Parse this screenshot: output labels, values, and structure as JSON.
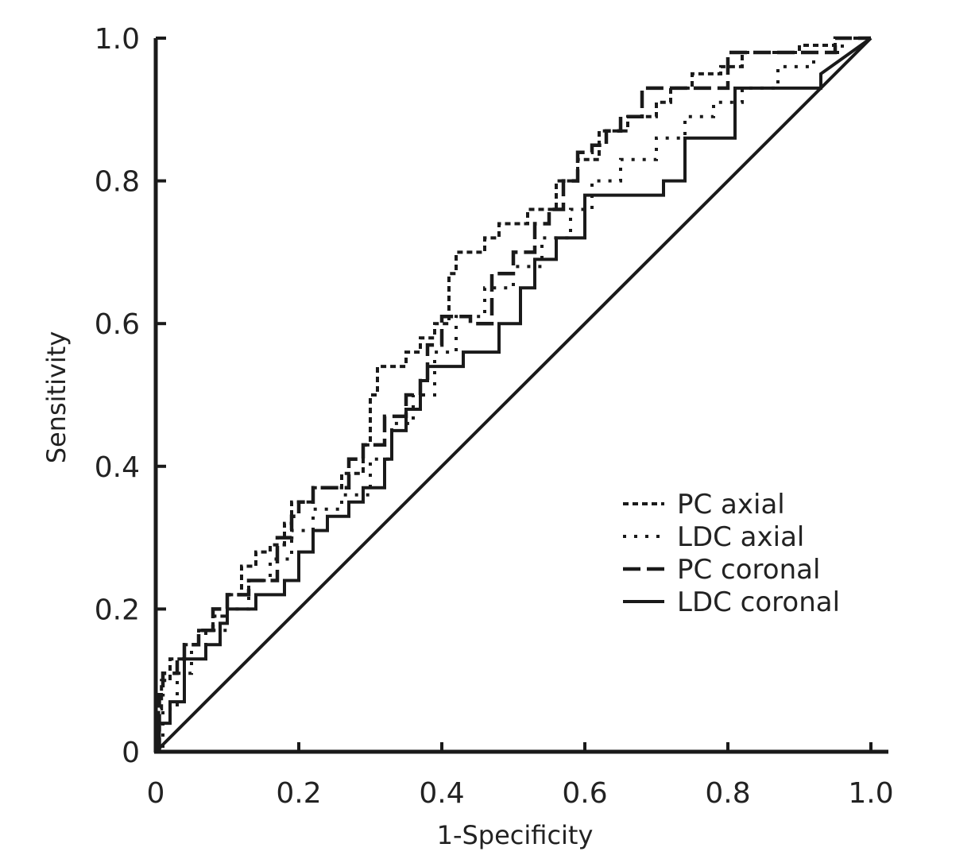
{
  "chart_data": {
    "type": "line",
    "xlabel": "1-Specificity",
    "ylabel": "Sensitivity",
    "xlim": [
      0,
      1
    ],
    "ylim": [
      0,
      1
    ],
    "x_ticks": [
      "0",
      "0.2",
      "0.4",
      "0.6",
      "0.8",
      "1.0"
    ],
    "y_ticks": [
      "0",
      "0.2",
      "0.4",
      "0.6",
      "0.8",
      "1.0"
    ],
    "legend_position": "bottom-right",
    "reference_line": {
      "x": [
        0,
        1
      ],
      "y": [
        0,
        1
      ]
    },
    "series": [
      {
        "name": "PC axial",
        "style": "short-dash",
        "x": [
          0,
          0.004,
          0.004,
          0.008,
          0.008,
          0.02,
          0.02,
          0.04,
          0.04,
          0.06,
          0.06,
          0.08,
          0.08,
          0.1,
          0.1,
          0.12,
          0.12,
          0.14,
          0.14,
          0.16,
          0.16,
          0.18,
          0.18,
          0.19,
          0.19,
          0.22,
          0.22,
          0.26,
          0.26,
          0.29,
          0.29,
          0.3,
          0.3,
          0.31,
          0.31,
          0.35,
          0.35,
          0.37,
          0.37,
          0.39,
          0.39,
          0.41,
          0.41,
          0.42,
          0.42,
          0.46,
          0.46,
          0.48,
          0.48,
          0.52,
          0.52,
          0.56,
          0.56,
          0.59,
          0.59,
          0.62,
          0.62,
          0.66,
          0.66,
          0.7,
          0.7,
          0.72,
          0.72,
          0.75,
          0.75,
          0.79,
          0.79,
          0.82,
          0.82,
          0.9,
          0.9,
          0.95,
          0.95,
          1.0
        ],
        "y": [
          0,
          0,
          0.06,
          0.06,
          0.1,
          0.1,
          0.13,
          0.13,
          0.15,
          0.15,
          0.17,
          0.17,
          0.19,
          0.19,
          0.22,
          0.22,
          0.26,
          0.26,
          0.28,
          0.28,
          0.29,
          0.29,
          0.32,
          0.32,
          0.35,
          0.35,
          0.37,
          0.37,
          0.39,
          0.39,
          0.43,
          0.43,
          0.5,
          0.5,
          0.54,
          0.54,
          0.56,
          0.56,
          0.58,
          0.58,
          0.6,
          0.6,
          0.67,
          0.67,
          0.7,
          0.7,
          0.72,
          0.72,
          0.74,
          0.74,
          0.76,
          0.76,
          0.8,
          0.8,
          0.83,
          0.83,
          0.87,
          0.87,
          0.89,
          0.89,
          0.91,
          0.91,
          0.93,
          0.93,
          0.95,
          0.95,
          0.96,
          0.96,
          0.98,
          0.98,
          0.99,
          0.99,
          1.0,
          1.0
        ]
      },
      {
        "name": "LDC axial",
        "style": "dotted",
        "x": [
          0,
          0.01,
          0.01,
          0.03,
          0.03,
          0.05,
          0.05,
          0.07,
          0.07,
          0.1,
          0.1,
          0.13,
          0.13,
          0.16,
          0.16,
          0.19,
          0.19,
          0.22,
          0.22,
          0.26,
          0.26,
          0.3,
          0.3,
          0.33,
          0.33,
          0.36,
          0.36,
          0.39,
          0.39,
          0.42,
          0.42,
          0.46,
          0.46,
          0.5,
          0.5,
          0.54,
          0.54,
          0.58,
          0.58,
          0.61,
          0.61,
          0.65,
          0.65,
          0.7,
          0.7,
          0.74,
          0.74,
          0.78,
          0.78,
          0.82,
          0.82,
          0.87,
          0.87,
          0.92,
          0.92,
          0.96,
          0.96,
          1.0
        ],
        "y": [
          0,
          0,
          0.06,
          0.06,
          0.11,
          0.11,
          0.15,
          0.15,
          0.17,
          0.17,
          0.2,
          0.2,
          0.24,
          0.24,
          0.27,
          0.27,
          0.31,
          0.31,
          0.34,
          0.34,
          0.36,
          0.36,
          0.41,
          0.41,
          0.46,
          0.46,
          0.5,
          0.5,
          0.56,
          0.56,
          0.61,
          0.61,
          0.65,
          0.65,
          0.68,
          0.68,
          0.72,
          0.72,
          0.76,
          0.76,
          0.8,
          0.8,
          0.83,
          0.83,
          0.86,
          0.86,
          0.89,
          0.89,
          0.91,
          0.91,
          0.93,
          0.93,
          0.96,
          0.96,
          0.98,
          0.98,
          1.0,
          1.0
        ]
      },
      {
        "name": "PC coronal",
        "style": "long-dash",
        "x": [
          0,
          0.005,
          0.005,
          0.01,
          0.01,
          0.03,
          0.03,
          0.04,
          0.04,
          0.06,
          0.06,
          0.08,
          0.08,
          0.1,
          0.1,
          0.13,
          0.13,
          0.17,
          0.17,
          0.19,
          0.19,
          0.2,
          0.2,
          0.22,
          0.22,
          0.27,
          0.27,
          0.29,
          0.29,
          0.32,
          0.32,
          0.35,
          0.35,
          0.37,
          0.37,
          0.38,
          0.38,
          0.4,
          0.4,
          0.44,
          0.44,
          0.47,
          0.47,
          0.5,
          0.5,
          0.53,
          0.53,
          0.55,
          0.55,
          0.57,
          0.57,
          0.59,
          0.59,
          0.61,
          0.61,
          0.63,
          0.63,
          0.65,
          0.65,
          0.68,
          0.68,
          0.7,
          0.7,
          0.73,
          0.73,
          0.8,
          0.8,
          0.95,
          0.95,
          1.0
        ],
        "y": [
          0,
          0,
          0.08,
          0.08,
          0.11,
          0.11,
          0.13,
          0.13,
          0.15,
          0.15,
          0.17,
          0.17,
          0.2,
          0.2,
          0.22,
          0.22,
          0.24,
          0.24,
          0.3,
          0.3,
          0.33,
          0.33,
          0.35,
          0.35,
          0.37,
          0.37,
          0.41,
          0.41,
          0.43,
          0.43,
          0.47,
          0.47,
          0.5,
          0.5,
          0.52,
          0.52,
          0.57,
          0.57,
          0.61,
          0.61,
          0.6,
          0.6,
          0.67,
          0.67,
          0.7,
          0.7,
          0.74,
          0.74,
          0.76,
          0.76,
          0.8,
          0.8,
          0.84,
          0.84,
          0.85,
          0.85,
          0.87,
          0.87,
          0.89,
          0.89,
          0.93,
          0.93,
          0.93,
          0.93,
          0.93,
          0.93,
          0.98,
          0.98,
          1.0,
          1.0
        ]
      },
      {
        "name": "LDC coronal",
        "style": "solid",
        "x": [
          0,
          0.005,
          0.005,
          0.02,
          0.02,
          0.04,
          0.04,
          0.07,
          0.07,
          0.09,
          0.09,
          0.1,
          0.1,
          0.14,
          0.14,
          0.18,
          0.18,
          0.2,
          0.2,
          0.22,
          0.22,
          0.24,
          0.24,
          0.27,
          0.27,
          0.29,
          0.29,
          0.32,
          0.32,
          0.33,
          0.33,
          0.35,
          0.35,
          0.37,
          0.37,
          0.38,
          0.38,
          0.43,
          0.43,
          0.48,
          0.48,
          0.51,
          0.51,
          0.53,
          0.53,
          0.56,
          0.56,
          0.6,
          0.6,
          0.67,
          0.67,
          0.71,
          0.71,
          0.74,
          0.74,
          0.81,
          0.81,
          0.93,
          0.93,
          1.0
        ],
        "y": [
          0,
          0,
          0.04,
          0.04,
          0.07,
          0.07,
          0.13,
          0.13,
          0.15,
          0.15,
          0.18,
          0.18,
          0.2,
          0.2,
          0.22,
          0.22,
          0.24,
          0.24,
          0.28,
          0.28,
          0.31,
          0.31,
          0.33,
          0.33,
          0.35,
          0.35,
          0.37,
          0.37,
          0.41,
          0.41,
          0.45,
          0.45,
          0.48,
          0.48,
          0.52,
          0.52,
          0.54,
          0.54,
          0.56,
          0.56,
          0.6,
          0.6,
          0.65,
          0.65,
          0.69,
          0.69,
          0.72,
          0.72,
          0.78,
          0.78,
          0.78,
          0.78,
          0.8,
          0.8,
          0.86,
          0.86,
          0.93,
          0.93,
          0.95,
          1.0
        ]
      }
    ]
  }
}
